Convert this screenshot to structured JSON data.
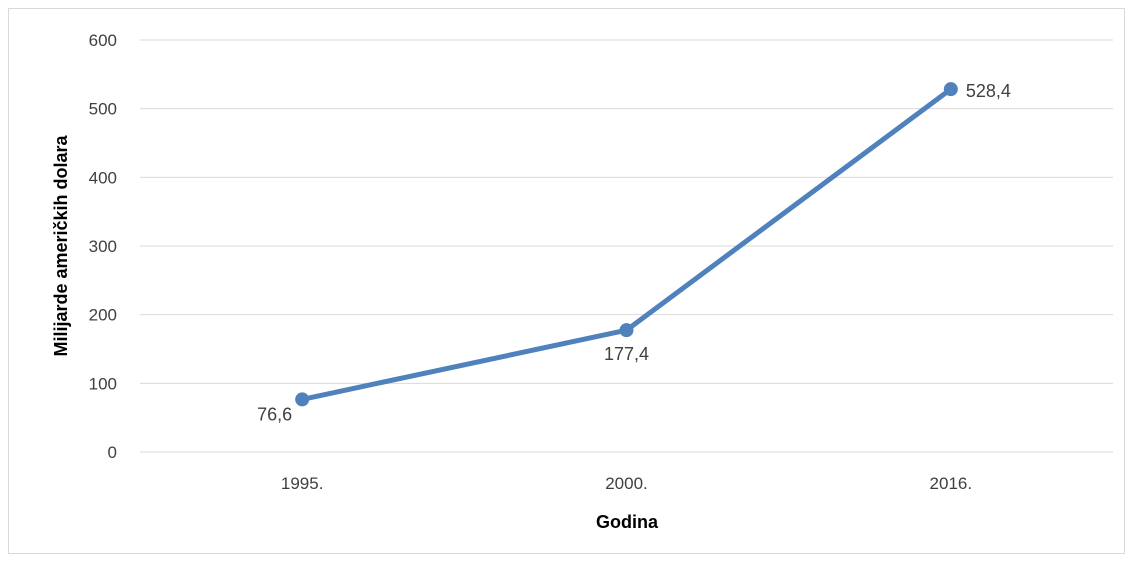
{
  "chart_data": {
    "type": "line",
    "title": "",
    "xlabel": "Godina",
    "ylabel": "Milijarde američkih dolara",
    "categories": [
      "1995.",
      "2000.",
      "2016."
    ],
    "series": [
      {
        "values": [
          76.6,
          177.4,
          528.4
        ],
        "labels": [
          "76,6",
          "177,4",
          "528,4"
        ],
        "color": "#4f81bd"
      }
    ],
    "ylim": [
      0,
      600
    ],
    "yticks": [
      0,
      100,
      200,
      300,
      400,
      500,
      600
    ],
    "grid": true,
    "legend": "none"
  }
}
